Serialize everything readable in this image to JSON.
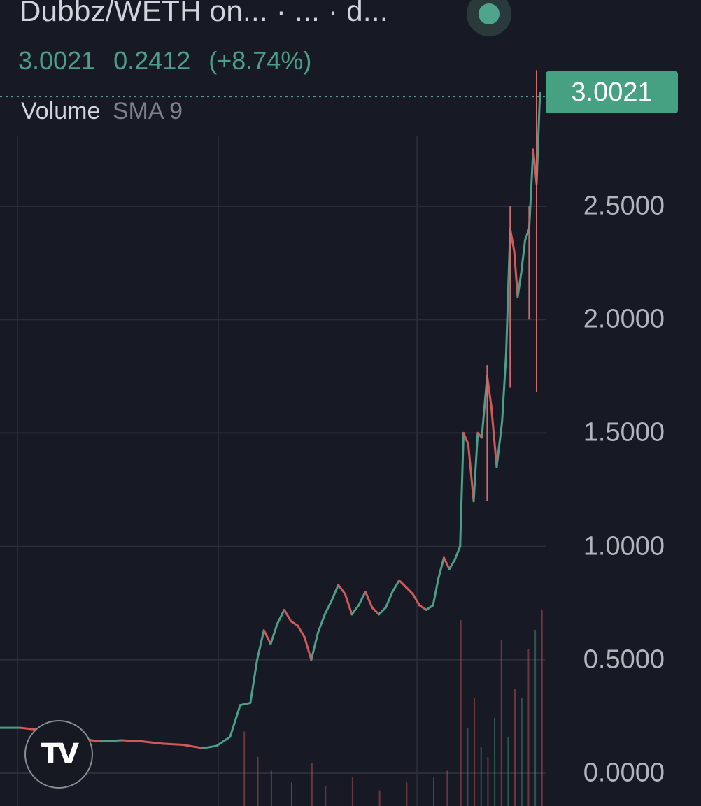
{
  "header": {
    "title": "Dubbz/WETH on...  · ...  · d...",
    "live_status_icon": "live-dot-icon",
    "last_price": "3.0021",
    "change": "0.2412",
    "change_pct": "(+8.74%)"
  },
  "indicator": {
    "name": "Volume",
    "params": "SMA 9"
  },
  "price_tag": "3.0021",
  "logo": {
    "icon": "tradingview-logo-icon",
    "text": "TV"
  },
  "colors": {
    "background": "#171a25",
    "up": "#4c9f87",
    "down": "#d05a5a",
    "grid": "#2a2e39",
    "last_price_line": "#4c9f87"
  },
  "chart_data": {
    "type": "line",
    "title": "Dubbz/WETH",
    "y_axis": {
      "ticks": [
        "3.0021",
        "2.5000",
        "2.0000",
        "1.5000",
        "1.0000",
        "0.5000",
        "0.0000"
      ],
      "tick_values": [
        2.5,
        2.0,
        1.5,
        1.0,
        0.5,
        0.0
      ],
      "ylim": [
        -0.02,
        3.3
      ]
    },
    "x_range": [
      0,
      100
    ],
    "grid": true,
    "last_price": 3.0021,
    "series": [
      {
        "values": [
          [
            0,
            0.2
          ],
          [
            3,
            0.2
          ],
          [
            6,
            0.19
          ],
          [
            9,
            0.17
          ],
          [
            12,
            0.15
          ],
          [
            15,
            0.14
          ],
          [
            18,
            0.145
          ],
          [
            21,
            0.14
          ],
          [
            24,
            0.13
          ],
          [
            27,
            0.125
          ],
          [
            30,
            0.11
          ],
          [
            32,
            0.12
          ],
          [
            34,
            0.16
          ],
          [
            35.5,
            0.3
          ],
          [
            37,
            0.31
          ],
          [
            38,
            0.5
          ],
          [
            39,
            0.63
          ],
          [
            40,
            0.57
          ],
          [
            41,
            0.66
          ],
          [
            42,
            0.72
          ],
          [
            43,
            0.67
          ],
          [
            44,
            0.65
          ],
          [
            45,
            0.6
          ],
          [
            46,
            0.5
          ],
          [
            47,
            0.62
          ],
          [
            48,
            0.7
          ],
          [
            49,
            0.76
          ],
          [
            50,
            0.83
          ],
          [
            51,
            0.79
          ],
          [
            52,
            0.7
          ],
          [
            53,
            0.74
          ],
          [
            54,
            0.8
          ],
          [
            55,
            0.73
          ],
          [
            56,
            0.7
          ],
          [
            57,
            0.73
          ],
          [
            58,
            0.8
          ],
          [
            59,
            0.85
          ],
          [
            60,
            0.82
          ],
          [
            61,
            0.79
          ],
          [
            62,
            0.74
          ],
          [
            63,
            0.72
          ],
          [
            64,
            0.74
          ],
          [
            64.8,
            0.86
          ],
          [
            65.6,
            0.95
          ],
          [
            66.4,
            0.9
          ],
          [
            67.2,
            0.94
          ],
          [
            68,
            1.0
          ],
          [
            68.5,
            1.5
          ],
          [
            69.2,
            1.45
          ],
          [
            70,
            1.2
          ],
          [
            70.6,
            1.5
          ],
          [
            71.2,
            1.48
          ],
          [
            72,
            1.75
          ],
          [
            72.6,
            1.62
          ],
          [
            73.4,
            1.35
          ],
          [
            74.2,
            1.55
          ],
          [
            74.8,
            1.85
          ],
          [
            75.4,
            2.4
          ],
          [
            76.0,
            2.3
          ],
          [
            76.5,
            2.1
          ],
          [
            77.0,
            2.2
          ],
          [
            77.6,
            2.35
          ],
          [
            78.2,
            2.4
          ],
          [
            78.8,
            2.75
          ],
          [
            79.3,
            2.6
          ],
          [
            79.8,
            3.0
          ]
        ]
      },
      {
        "name": "Volume",
        "values": [
          [
            36,
            0.38
          ],
          [
            38,
            0.25
          ],
          [
            40,
            0.18
          ],
          [
            43,
            0.12
          ],
          [
            46,
            0.22
          ],
          [
            48,
            0.1
          ],
          [
            52,
            0.15
          ],
          [
            56,
            0.08
          ],
          [
            60,
            0.12
          ],
          [
            64,
            0.15
          ],
          [
            66,
            0.18
          ],
          [
            68,
            0.95
          ],
          [
            69,
            0.4
          ],
          [
            70,
            0.55
          ],
          [
            71,
            0.3
          ],
          [
            72,
            0.25
          ],
          [
            73,
            0.45
          ],
          [
            74,
            0.85
          ],
          [
            75,
            0.35
          ],
          [
            76,
            0.6
          ],
          [
            77,
            0.55
          ],
          [
            78,
            0.8
          ],
          [
            79,
            0.9
          ],
          [
            80,
            1.0
          ]
        ]
      }
    ]
  }
}
